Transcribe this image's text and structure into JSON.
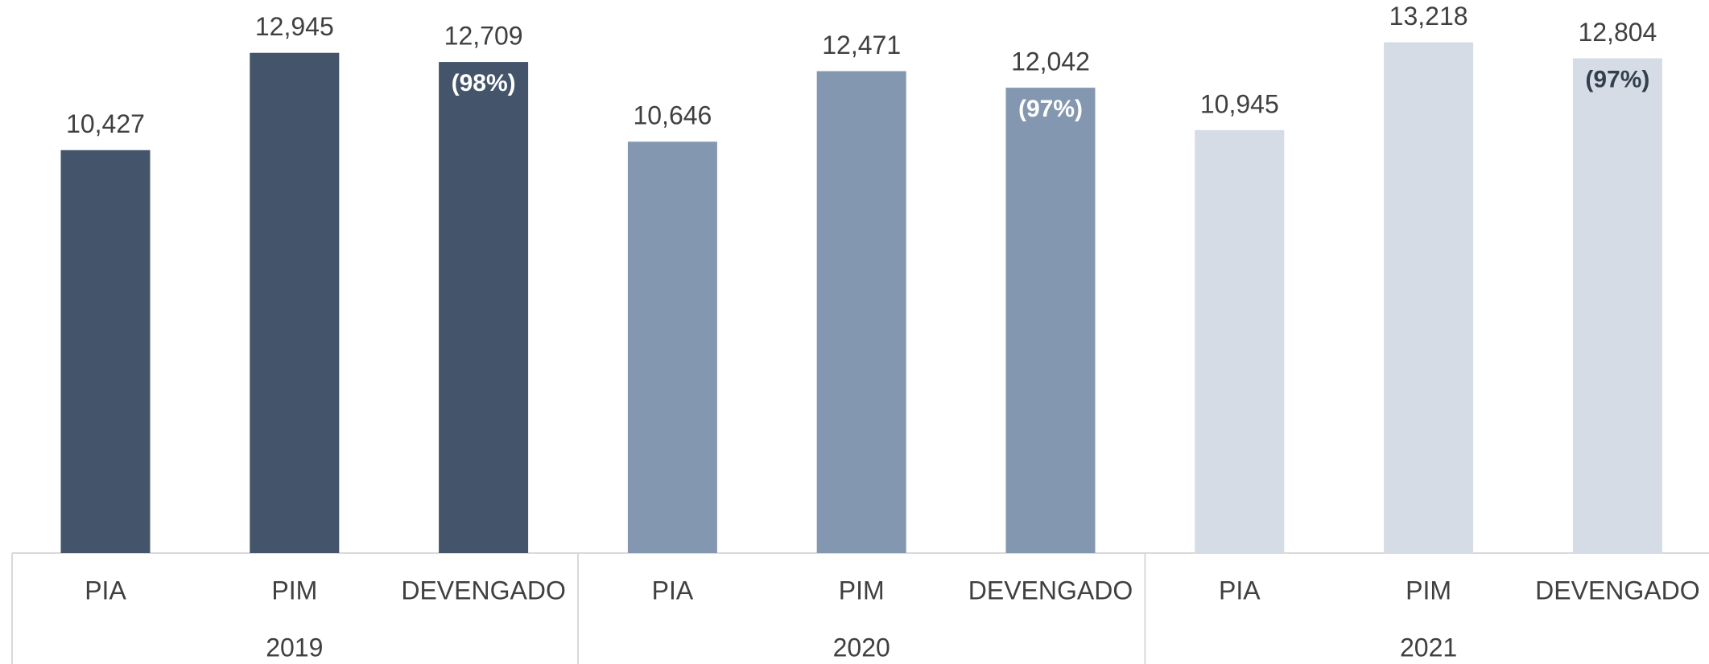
{
  "chart_data": {
    "type": "bar",
    "categories": [
      "PIA",
      "PIM",
      "DEVENGADO",
      "PIA",
      "PIM",
      "DEVENGADO",
      "PIA",
      "PIM",
      "DEVENGADO"
    ],
    "values": [
      10427,
      12945,
      12709,
      10646,
      12471,
      12042,
      10945,
      13218,
      12804
    ],
    "value_labels": [
      "10,427",
      "12,945",
      "12,709",
      "10,646",
      "12,471",
      "12,042",
      "10,945",
      "13,218",
      "12,804"
    ],
    "bar_notes": [
      null,
      null,
      "(98%)",
      null,
      null,
      "(97%)",
      null,
      null,
      "(97%)"
    ],
    "groups": [
      {
        "label": "2019",
        "color": "#44546a",
        "note_color": "#ffffff"
      },
      {
        "label": "2020",
        "color": "#8497b0",
        "note_color": "#ffffff"
      },
      {
        "label": "2021",
        "color": "#d6dce5",
        "note_color": "#333f50"
      }
    ],
    "ylim": [
      0,
      14000
    ]
  }
}
